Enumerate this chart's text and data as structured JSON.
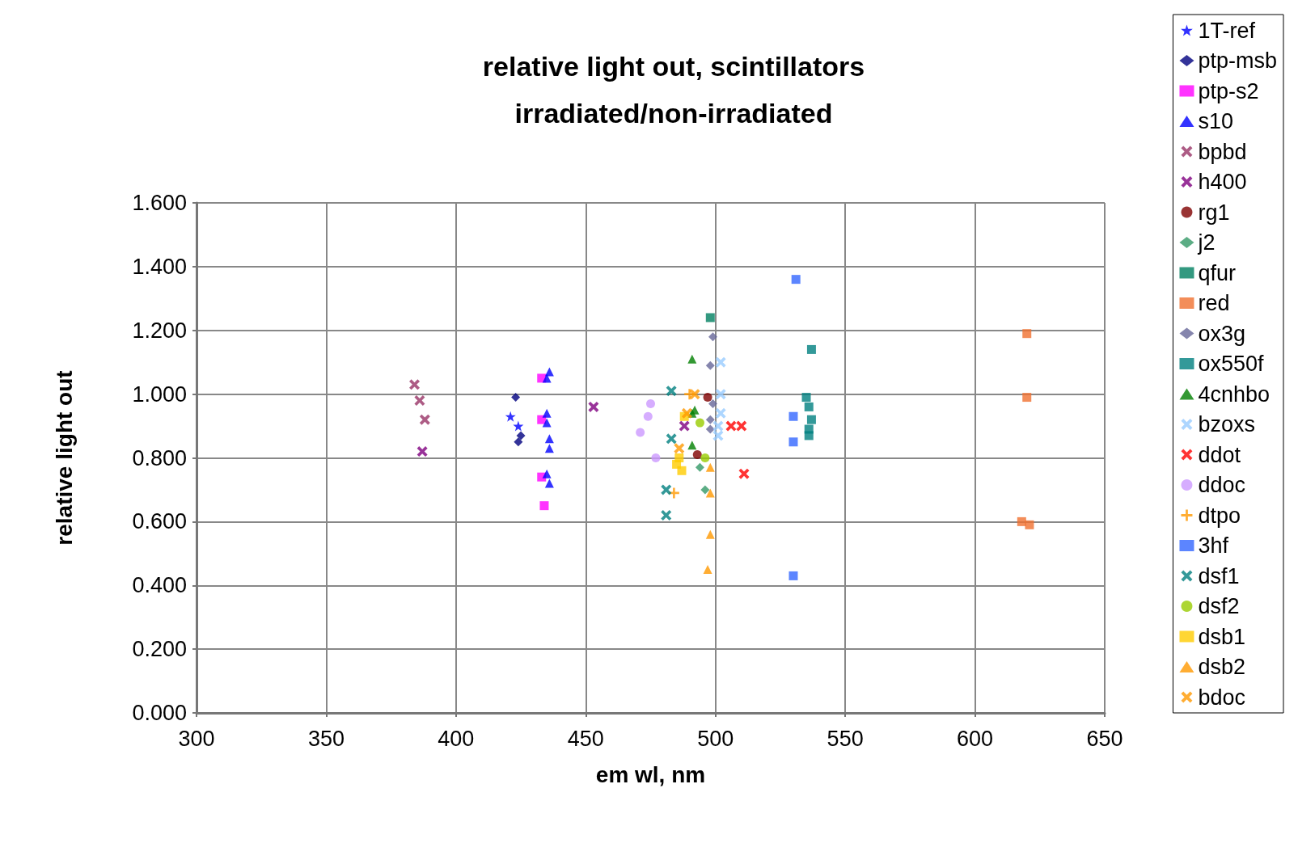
{
  "chart_data": {
    "type": "scatter",
    "title": "relative light out, scintillators\nirradiated/non-irradiated",
    "xlabel": "em wl, nm",
    "ylabel": "relative light out",
    "xlim": [
      300,
      650
    ],
    "xticks": [
      300,
      350,
      400,
      450,
      500,
      550,
      600,
      650
    ],
    "ylim": [
      0,
      1.6
    ],
    "yticks": [
      {
        "value": 0,
        "label": "0.000"
      },
      {
        "value": 0.2,
        "label": "0.200"
      },
      {
        "value": 0.4,
        "label": "0.400"
      },
      {
        "value": 0.6,
        "label": "0.600"
      },
      {
        "value": 0.8,
        "label": "0.800"
      },
      {
        "value": 1.0,
        "label": "1.000"
      },
      {
        "value": 1.2,
        "label": "1.200"
      },
      {
        "value": 1.4,
        "label": "1.400"
      },
      {
        "value": 1.6,
        "label": "1.600"
      }
    ],
    "grid": true,
    "legend": "right",
    "series": [
      {
        "name": "1T-ref",
        "color": "#0000ff",
        "marker": "star",
        "x": [
          421,
          424
        ],
        "values": [
          0.93,
          0.9
        ]
      },
      {
        "name": "ptp-msb",
        "color": "#000080",
        "marker": "diamond",
        "x": [
          423,
          424,
          425
        ],
        "values": [
          0.99,
          0.85,
          0.87
        ]
      },
      {
        "name": "ptp-s2",
        "color": "#ff00ff",
        "marker": "square",
        "x": [
          433,
          433,
          433,
          434
        ],
        "values": [
          1.05,
          0.92,
          0.74,
          0.65
        ]
      },
      {
        "name": "s10",
        "color": "#0000ff",
        "marker": "triangle",
        "x": [
          436,
          435,
          435,
          435,
          436,
          436,
          435,
          436
        ],
        "values": [
          1.07,
          1.05,
          0.94,
          0.91,
          0.86,
          0.83,
          0.75,
          0.72
        ]
      },
      {
        "name": "bpbd",
        "color": "#993366",
        "marker": "cross",
        "x": [
          384,
          386,
          388,
          null
        ],
        "values": [
          1.03,
          0.98,
          0.92,
          null
        ]
      },
      {
        "name": "h400",
        "color": "#800080",
        "marker": "cross",
        "x": [
          387,
          453,
          488
        ],
        "values": [
          0.82,
          0.96,
          0.9
        ]
      },
      {
        "name": "rg1",
        "color": "#800000",
        "marker": "circle",
        "x": [
          497,
          493
        ],
        "values": [
          0.99,
          0.81
        ]
      },
      {
        "name": "j2",
        "color": "#339966",
        "marker": "diamond",
        "x": [
          494,
          496
        ],
        "values": [
          0.77,
          0.7
        ]
      },
      {
        "name": "qfur",
        "color": "#008060",
        "marker": "square",
        "x": [
          498
        ],
        "values": [
          1.24
        ]
      },
      {
        "name": "red",
        "color": "#f07030",
        "marker": "square",
        "x": [
          620,
          620,
          618,
          621
        ],
        "values": [
          1.19,
          0.99,
          0.6,
          0.59
        ]
      },
      {
        "name": "ox3g",
        "color": "#666699",
        "marker": "diamond",
        "x": [
          499,
          498,
          499,
          498,
          498
        ],
        "values": [
          1.18,
          1.09,
          0.97,
          0.92,
          0.89
        ]
      },
      {
        "name": "ox550f",
        "color": "#008080",
        "marker": "square",
        "x": [
          537,
          535,
          536,
          537,
          536,
          536
        ],
        "values": [
          1.14,
          0.99,
          0.96,
          0.92,
          0.89,
          0.87
        ]
      },
      {
        "name": "4cnhbo",
        "color": "#008000",
        "marker": "triangle",
        "x": [
          491,
          492,
          491,
          491
        ],
        "values": [
          1.11,
          0.95,
          0.94,
          0.84
        ]
      },
      {
        "name": "bzoxs",
        "color": "#99ccff",
        "marker": "cross",
        "x": [
          502,
          502,
          502,
          501,
          501
        ],
        "values": [
          1.1,
          1.0,
          0.94,
          0.9,
          0.87
        ]
      },
      {
        "name": "ddot",
        "color": "#ff0000",
        "marker": "cross",
        "x": [
          506,
          510,
          511
        ],
        "values": [
          0.9,
          0.9,
          0.75
        ]
      },
      {
        "name": "ddoc",
        "color": "#cc99ff",
        "marker": "circle",
        "x": [
          475,
          474,
          471,
          477
        ],
        "values": [
          0.97,
          0.93,
          0.88,
          0.8
        ]
      },
      {
        "name": "dtpo",
        "color": "#ff9900",
        "marker": "plus",
        "x": [
          null,
          null,
          484,
          490
        ],
        "values": [
          null,
          null,
          0.69,
          1.0
        ]
      },
      {
        "name": "3hf",
        "color": "#3366ff",
        "marker": "square",
        "x": [
          531,
          530,
          530,
          530
        ],
        "values": [
          1.36,
          0.93,
          0.85,
          0.43
        ]
      },
      {
        "name": "dsf1",
        "color": "#008080",
        "marker": "cross",
        "x": [
          483,
          483,
          481,
          481
        ],
        "values": [
          1.01,
          0.86,
          0.7,
          0.62
        ]
      },
      {
        "name": "dsf2",
        "color": "#99cc00",
        "marker": "circle",
        "x": [
          494,
          496
        ],
        "values": [
          0.91,
          0.8
        ]
      },
      {
        "name": "dsb1",
        "color": "#ffcc00",
        "marker": "square",
        "x": [
          485,
          487,
          486,
          488
        ],
        "values": [
          0.78,
          0.76,
          0.8,
          0.93
        ]
      },
      {
        "name": "dsb2",
        "color": "#ff9900",
        "marker": "triangle",
        "x": [
          498,
          497,
          498,
          498
        ],
        "values": [
          0.56,
          0.45,
          0.69,
          0.77
        ]
      },
      {
        "name": "bdoc",
        "color": "#ff9900",
        "marker": "cross",
        "x": [
          489,
          486,
          492
        ],
        "values": [
          0.94,
          0.83,
          1.0
        ]
      }
    ]
  }
}
